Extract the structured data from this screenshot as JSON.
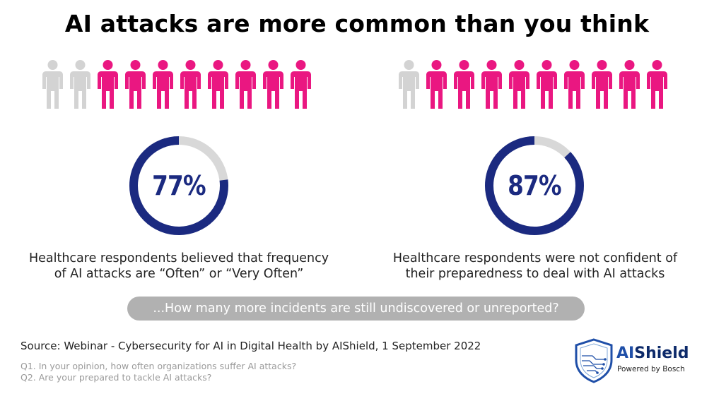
{
  "title": "AI attacks are more common than you think",
  "colors": {
    "highlight": "#ea1781",
    "muted": "#d3d3d3",
    "ring": "#1b2a80",
    "ring_track": "#d8d8d8"
  },
  "stats": [
    {
      "percent_label": "77%",
      "value": 0.77,
      "people_total": 10,
      "people_highlighted": 8,
      "caption_line1": "Healthcare respondents believed that frequency",
      "caption_line2": "of AI attacks are “Often” or “Very Often”"
    },
    {
      "percent_label": "87%",
      "value": 0.87,
      "people_total": 10,
      "people_highlighted": 9,
      "caption_line1": "Healthcare respondents were not confident of",
      "caption_line2": "their preparedness to deal with AI attacks"
    }
  ],
  "banner": "...How many more incidents are still undiscovered or unreported?",
  "source": "Source: Webinar - Cybersecurity for AI in Digital Health by AIShield, 1 September 2022",
  "questions": [
    "Q1. In your opinion, how often organizations suffer AI attacks?",
    "Q2. Are your prepared to tackle AI attacks?"
  ],
  "logo": {
    "brand_prefix": "AI",
    "brand_suffix": "Shield",
    "tagline": "Powered by Bosch",
    "icon": "shield-circuit-icon"
  }
}
